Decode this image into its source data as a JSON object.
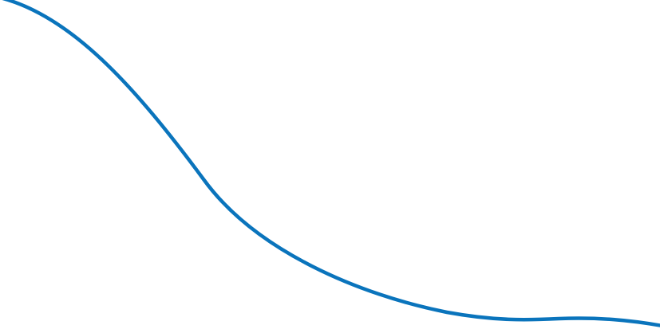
{
  "decoration": {
    "curve_color": "#0a74bc"
  }
}
